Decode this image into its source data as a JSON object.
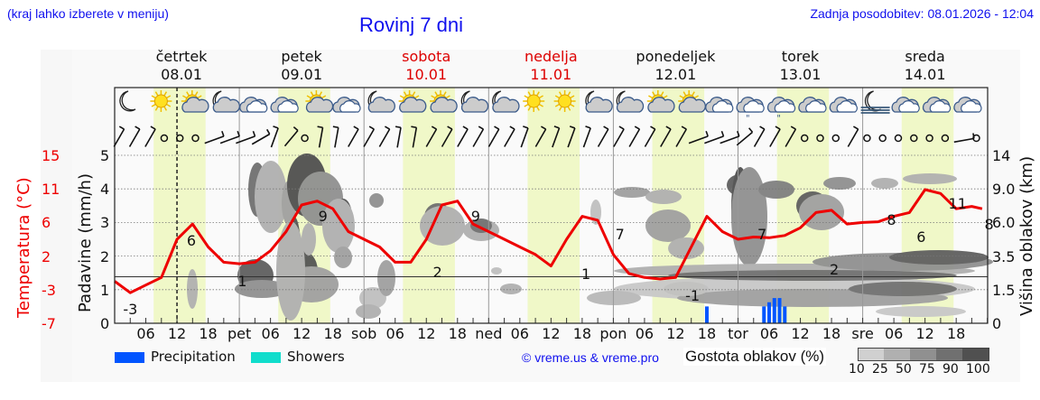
{
  "header": {
    "location_hint": "(kraj lahko izberete v meniju)",
    "title": "Rovinj 7 dni",
    "last_update": "Zadnja posodobitev: 08.01.2026 - 12:04"
  },
  "days": [
    {
      "name": "četrtek",
      "date": "08.01",
      "weekend": false
    },
    {
      "name": "petek",
      "date": "09.01",
      "weekend": false
    },
    {
      "name": "sobota",
      "date": "10.01",
      "weekend": true
    },
    {
      "name": "nedelja",
      "date": "11.01",
      "weekend": true
    },
    {
      "name": "ponedeljek",
      "date": "12.01",
      "weekend": false
    },
    {
      "name": "torek",
      "date": "13.01",
      "weekend": false
    },
    {
      "name": "sreda",
      "date": "14.01",
      "weekend": false
    }
  ],
  "axes": {
    "temperature_label": "Temperatura (°C)",
    "precip_label": "Padavine (mm/h)",
    "cloud_height_label": "Višina oblakov (km)",
    "temperature_ticks": [
      "15",
      "11",
      "6",
      "2",
      "-3",
      "-7"
    ],
    "precip_ticks": [
      "5",
      "4",
      "3",
      "2",
      "1",
      "0"
    ],
    "cloud_height_ticks": [
      "14",
      "9.0",
      "6.0",
      "3.5",
      "1.5",
      "0"
    ],
    "x_ticks": [
      "06",
      "12",
      "18",
      "pet",
      "06",
      "12",
      "18",
      "sob",
      "06",
      "12",
      "18",
      "ned",
      "06",
      "12",
      "18",
      "pon",
      "06",
      "12",
      "18",
      "tor",
      "06",
      "12",
      "18",
      "sre",
      "06",
      "12",
      "18"
    ]
  },
  "legend": {
    "precipitation": "Precipitation",
    "showers": "Showers",
    "precipitation_color": "#0055ff",
    "showers_color": "#11ddcc",
    "copyright": "© vreme.us & vreme.pro",
    "cloud_density_title": "Gostota oblakov (%)",
    "cloud_density_scale": [
      "10",
      "25",
      "50",
      "75",
      "90",
      "100"
    ],
    "cloud_density_colors": [
      "#d0d0d0",
      "#b0b0b0",
      "#909090",
      "#707070",
      "#505050"
    ]
  },
  "colors": {
    "temperature_line": "#ee0000",
    "daylight_band": "#f0f8c8",
    "title_blue": "#1010ee",
    "weekend_red": "#dd0000"
  },
  "chart_data": {
    "type": "line",
    "title": "Rovinj 7 dni",
    "xlabel": "",
    "ylabel": "Temperatura (°C)",
    "ylim": [
      -7,
      15
    ],
    "series": [
      {
        "name": "Temperature (°C)",
        "hours": [
          0,
          3,
          6,
          9,
          12,
          15,
          18,
          21,
          24,
          27,
          30,
          33,
          36,
          39,
          42,
          45,
          48,
          51,
          54,
          57,
          60,
          63,
          66,
          69,
          72,
          75,
          78,
          81,
          84,
          87,
          90,
          93,
          96,
          99,
          102,
          105,
          108,
          111,
          114,
          117,
          120,
          123,
          126,
          129,
          132,
          135,
          138,
          141,
          144,
          147,
          150,
          153,
          156,
          159,
          162,
          165,
          167
        ],
        "values": [
          -1.5,
          -3,
          -2,
          -1,
          4,
          6,
          3,
          1,
          0.8,
          1,
          2.5,
          5,
          8.5,
          9,
          8,
          5,
          4,
          3,
          1,
          1,
          4,
          8.5,
          9,
          6,
          5,
          4,
          3,
          2,
          0.5,
          4,
          7,
          6.5,
          2,
          -0.5,
          -1,
          -1.2,
          -1,
          3,
          7,
          5,
          4,
          4.3,
          4.2,
          4.5,
          5.5,
          7.5,
          7.8,
          6,
          6.2,
          6.3,
          7,
          7.5,
          10.5,
          10,
          8,
          8.3,
          8
        ]
      },
      {
        "name": "Precipitation (mm/h)",
        "points": [
          {
            "hour": 114,
            "value": 0.2
          },
          {
            "hour": 125,
            "value": 0.2
          },
          {
            "hour": 126,
            "value": 0.25
          },
          {
            "hour": 127,
            "value": 0.3
          },
          {
            "hour": 128,
            "value": 0.3
          },
          {
            "hour": 129,
            "value": 0.2
          }
        ]
      }
    ],
    "annotations": {
      "temperature_labels": [
        {
          "day": "08.01",
          "min": -3,
          "max": 6
        },
        {
          "day": "09.01",
          "min": 1,
          "max": 9
        },
        {
          "day": "10.01",
          "min": 2,
          "max": 9
        },
        {
          "day": "11.01",
          "min": 1,
          "max": 7
        },
        {
          "day": "12.01",
          "min": -1,
          "max": 7
        },
        {
          "day": "13.01",
          "min": 2,
          "max": 8
        },
        {
          "day": "13.01 evening",
          "value": 6
        },
        {
          "day": "14.01",
          "max": 11,
          "evening": 8
        }
      ],
      "current_time_marker": "08.01 12:00"
    },
    "weather_icons": [
      "moon",
      "sun",
      "sun-cloud",
      "moon-cloud",
      "cloud",
      "cloud",
      "sun-cloud",
      "cloud",
      "moon-cloud",
      "sun-cloud",
      "sun-cloud",
      "moon-cloud",
      "moon-cloud",
      "sun",
      "sun",
      "moon-cloud",
      "moon-cloud",
      "sun-cloud",
      "sun-cloud",
      "cloud",
      "cloud-drizzle",
      "cloud-drizzle",
      "cloud",
      "cloud",
      "moon-fog",
      "cloud",
      "cloud",
      "cloud"
    ],
    "secondary_axes": {
      "precip_range": [
        0,
        5
      ],
      "cloud_height_km_ticks": [
        0,
        1.5,
        3.5,
        6.0,
        9.0,
        14
      ]
    },
    "grid": true
  }
}
